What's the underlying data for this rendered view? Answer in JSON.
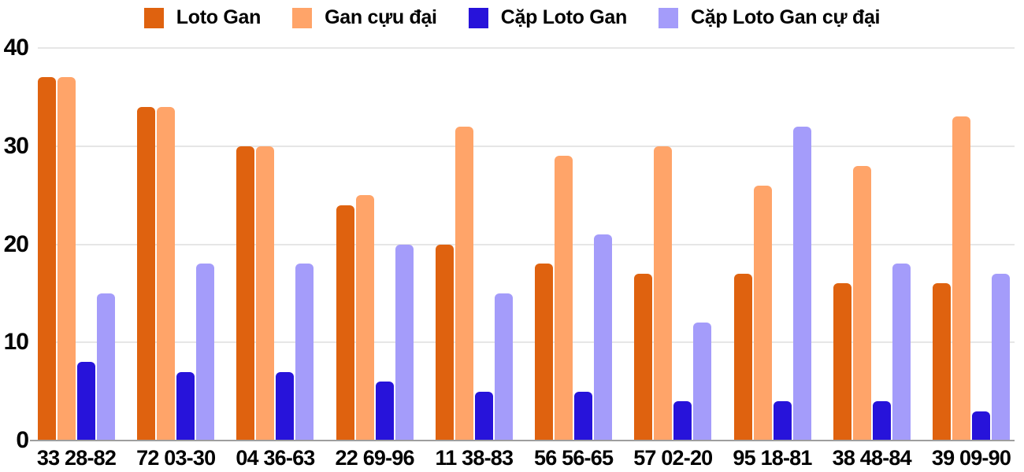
{
  "colors": {
    "background": "#ffffff",
    "grid": "#e6e6e6",
    "baseline": "#9e9e9e",
    "text": "#000000"
  },
  "chart_data": {
    "type": "bar",
    "title": "",
    "xlabel": "",
    "ylabel": "",
    "ylim": [
      0,
      40
    ],
    "y_ticks": [
      0,
      10,
      20,
      30,
      40
    ],
    "grid": true,
    "legend_position": "top-center",
    "categories": [
      "33 28-82",
      "72 03-30",
      "04 36-63",
      "22 69-96",
      "11 38-83",
      "56 56-65",
      "57 02-20",
      "95 18-81",
      "38 48-84",
      "39 09-90"
    ],
    "series": [
      {
        "name": "Loto Gan",
        "color": "#df620f",
        "values": [
          37,
          34,
          30,
          24,
          20,
          18,
          17,
          17,
          16,
          16
        ]
      },
      {
        "name": "Gan cựu đại",
        "color": "#ffa469",
        "values": [
          37,
          34,
          30,
          25,
          32,
          29,
          30,
          26,
          28,
          33
        ]
      },
      {
        "name": "Cặp Loto Gan",
        "color": "#2713da",
        "values": [
          8,
          7,
          7,
          6,
          5,
          5,
          4,
          4,
          4,
          3
        ]
      },
      {
        "name": "Cặp Loto Gan cự đại",
        "color": "#a49cfa",
        "values": [
          15,
          18,
          18,
          20,
          15,
          21,
          12,
          32,
          18,
          17
        ]
      }
    ]
  }
}
